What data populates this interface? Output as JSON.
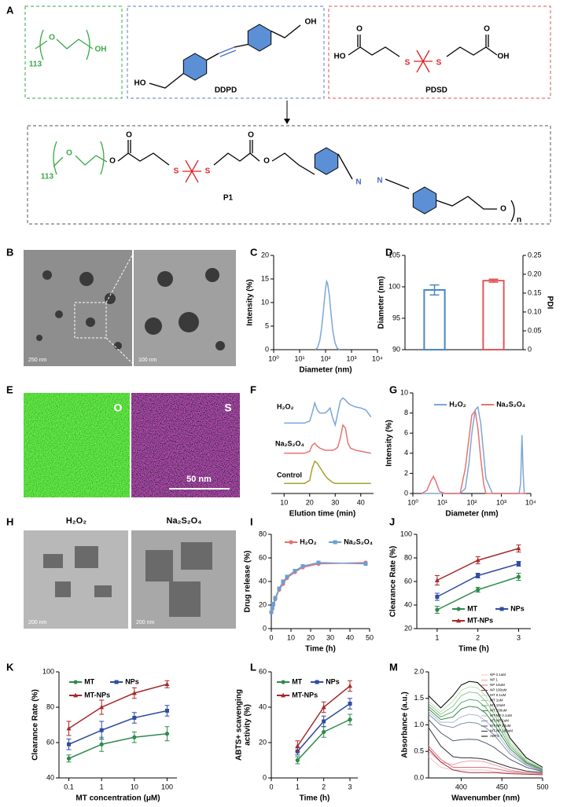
{
  "panels": [
    "A",
    "B",
    "C",
    "D",
    "E",
    "F",
    "G",
    "H",
    "I",
    "J",
    "K",
    "L",
    "M"
  ],
  "scheme_labels": [
    "113",
    "O",
    "OH",
    "OH",
    "HO",
    "DDPD",
    "O",
    "HO",
    "S",
    "S",
    "O",
    "OH",
    "PDSD",
    "113",
    "O",
    "O",
    "O",
    "S",
    "S",
    "O",
    "O",
    "N",
    "N",
    "P1",
    "O",
    "n"
  ],
  "images": {
    "B": [
      "250 nm",
      "100 nm"
    ],
    "E": [
      "O",
      "S",
      "50 nm"
    ],
    "H": [
      "H₂O₂",
      "Na₂S₂O₄",
      "200 nm",
      "200 nm"
    ]
  },
  "chart_data": [
    {
      "type": "line",
      "xlabel": "Diameter (nm)",
      "ylabel": "Intensity (%)",
      "xlog": true,
      "xlim": [
        1,
        10000
      ],
      "xticks": [
        {
          "value": 1,
          "label": "10⁰"
        },
        {
          "value": 10,
          "label": "10¹"
        },
        {
          "value": 100,
          "label": "10²"
        },
        {
          "value": 1000,
          "label": "10³"
        },
        {
          "value": 10000,
          "label": "10⁴"
        }
      ],
      "ylim": [
        0,
        20
      ],
      "yticks": [
        0,
        5,
        10,
        15,
        20
      ],
      "x": [
        40,
        50,
        60,
        70,
        80,
        90,
        100,
        110,
        120,
        140,
        160,
        190,
        230,
        280,
        350
      ],
      "series": [
        {
          "color": "#7aa7d8",
          "values": [
            0,
            0.5,
            2,
            4.5,
            7.5,
            10.5,
            13,
            14.5,
            14,
            11.5,
            8,
            4,
            1.5,
            0.3,
            0
          ]
        }
      ]
    },
    {
      "type": "bar",
      "ylabel": "Diameter (nm)",
      "y2label": "PDI",
      "categories": [
        null,
        null
      ],
      "ylim": [
        90,
        105
      ],
      "yticks": [
        90,
        95,
        100,
        105
      ],
      "y2lim": [
        0,
        0.25
      ],
      "y2ticks": [
        0,
        0.05,
        {
          "value": 0.1,
          "label": "0.10"
        },
        0.15,
        {
          "value": 0.2,
          "label": "0.20"
        },
        0.25
      ],
      "series": [
        {
          "color": "#4a86c5",
          "values": [
            99.5,
            null
          ],
          "errors": [
            0.8,
            null
          ]
        },
        {
          "color": "#e0575a",
          "values": [
            null,
            0.183
          ],
          "errors": [
            null,
            0.004
          ],
          "axis": "y2"
        }
      ]
    },
    {
      "type": "line",
      "xlabel": "Elution time (min)",
      "legend": "inline",
      "xlim": [
        5,
        45
      ],
      "xticks": [
        10,
        20,
        30,
        40
      ],
      "ylim": [
        0,
        10
      ],
      "x": [
        10,
        12,
        15,
        18,
        20,
        21,
        22,
        23,
        24,
        25,
        26,
        27,
        28,
        29,
        30,
        31,
        32,
        33,
        34,
        35,
        36,
        38,
        40,
        42,
        44
      ],
      "series": [
        {
          "name": "H₂O₂",
          "color": "#7aa7d8",
          "values": [
            7,
            7,
            7,
            7,
            7.2,
            8,
            9,
            8.3,
            8,
            8,
            8,
            8.2,
            8.5,
            7.5,
            6.8,
            8,
            9.2,
            9.5,
            9.3,
            9,
            8.8,
            8.6,
            8.5,
            8.3,
            7.6
          ]
        },
        {
          "name": "Na₂S₂O₄",
          "color": "#e57373",
          "values": [
            4,
            4,
            4,
            4,
            4.2,
            4.8,
            5,
            4.7,
            4.5,
            4.4,
            4.3,
            4.3,
            4.3,
            4.3,
            4.4,
            4.6,
            5.5,
            6.8,
            6.5,
            5,
            4.5,
            4.3,
            4.2,
            4.1,
            4
          ]
        },
        {
          "name": "Control",
          "color": "#a7a032",
          "values": [
            1,
            1,
            1,
            1,
            1.3,
            2.5,
            3.2,
            3,
            2.6,
            2.2,
            1.8,
            1.5,
            1.3,
            1.1,
            1,
            1,
            1,
            1,
            1,
            1,
            1,
            1,
            1,
            1,
            1
          ]
        }
      ]
    },
    {
      "type": "line",
      "xlabel": "Diameter (nm)",
      "ylabel": "Intensity (%)",
      "xlog": true,
      "legend": "upper left",
      "xlim": [
        1,
        10000
      ],
      "xticks": [
        {
          "value": 1,
          "label": "10⁰"
        },
        {
          "value": 10,
          "label": "10¹"
        },
        {
          "value": 100,
          "label": "10²"
        },
        {
          "value": 1000,
          "label": "10³"
        },
        {
          "value": 10000,
          "label": "10⁴"
        }
      ],
      "ylim": [
        0,
        10
      ],
      "yticks": [
        0,
        2,
        4,
        6,
        8,
        10
      ],
      "x": [
        2,
        3,
        4,
        5,
        6,
        8,
        12,
        20,
        40,
        60,
        80,
        100,
        130,
        160,
        200,
        250,
        300,
        500,
        1000,
        3000,
        4000,
        4500,
        5000,
        5500,
        6000,
        7000
      ],
      "series": [
        {
          "name": "H₂O₂",
          "color": "#7aa7d8",
          "values": [
            0,
            0,
            0,
            0,
            0,
            0,
            0,
            0,
            0,
            0.5,
            3,
            6,
            8.3,
            8.6,
            7,
            4,
            1.5,
            0,
            0,
            0,
            0,
            1,
            5.8,
            2,
            0,
            0
          ]
        },
        {
          "name": "Na₂S₂O₄",
          "color": "#e57373",
          "values": [
            0,
            0.3,
            1.2,
            1.7,
            1.2,
            0.2,
            0,
            0,
            0,
            2.5,
            5.5,
            7.8,
            8.2,
            6.5,
            3.5,
            1,
            0,
            0,
            0,
            0,
            0,
            0,
            0,
            0,
            0,
            0
          ]
        }
      ]
    },
    {
      "type": "line",
      "xlabel": "Time (h)",
      "ylabel": "Drug release (%)",
      "legend": "upper left",
      "markers": true,
      "xlim": [
        0,
        50
      ],
      "xticks": [
        0,
        10,
        20,
        30,
        40,
        50
      ],
      "ylim": [
        0,
        80
      ],
      "yticks": [
        0,
        20,
        40,
        60,
        80
      ],
      "x": [
        0,
        0.5,
        1,
        2,
        4,
        6,
        8,
        12,
        16,
        24,
        48
      ],
      "series": [
        {
          "name": "H₂O₂",
          "color": "#e8706e",
          "values": [
            14,
            17,
            20,
            25,
            33,
            38,
            43,
            48,
            52,
            55,
            56
          ]
        },
        {
          "name": "Na₂S₂O₄",
          "color": "#6a9fd4",
          "values": [
            14,
            18,
            21,
            26,
            34,
            40,
            44,
            49,
            53,
            56,
            55
          ]
        }
      ]
    },
    {
      "type": "line",
      "xlabel": "Time (h)",
      "ylabel": "Clearance Rate (%)",
      "legend": "lower right",
      "markers": true,
      "xlim": [
        0.5,
        3.3
      ],
      "xticks": [
        1,
        2,
        3
      ],
      "ylim": [
        20,
        100
      ],
      "yticks": [
        20,
        40,
        60,
        80,
        100
      ],
      "x": [
        1,
        2,
        3
      ],
      "series": [
        {
          "name": "MT",
          "color": "#2e8b4e",
          "values": [
            36,
            53,
            64
          ],
          "errors": [
            3,
            2,
            3
          ]
        },
        {
          "name": "NPs",
          "color": "#2f4da0",
          "values": [
            47,
            65,
            75
          ],
          "errors": [
            3,
            2,
            2
          ]
        },
        {
          "name": "MT-NPs",
          "color": "#a52a2a",
          "values": [
            61,
            78,
            88
          ],
          "errors": [
            4,
            3,
            3
          ]
        }
      ]
    },
    {
      "type": "line",
      "xlabel": "MT concentration (μM)",
      "ylabel": "Clearance Rate (%)",
      "xlog": true,
      "legend": "upper left",
      "markers": true,
      "xlim": [
        0.05,
        200
      ],
      "xticks": [
        0.1,
        1,
        10,
        100
      ],
      "ylim": [
        40,
        100
      ],
      "yticks": [
        40,
        60,
        80,
        100
      ],
      "x": [
        0.1,
        1,
        10,
        100
      ],
      "series": [
        {
          "name": "MT",
          "color": "#2e8b4e",
          "values": [
            51,
            59,
            63,
            65
          ],
          "errors": [
            2,
            4,
            3,
            4
          ]
        },
        {
          "name": "NPs",
          "color": "#2f4da0",
          "values": [
            59,
            67,
            74,
            78
          ],
          "errors": [
            3,
            5,
            3,
            3
          ]
        },
        {
          "name": "MT-NPs",
          "color": "#a52a2a",
          "values": [
            68,
            80,
            88,
            93
          ],
          "errors": [
            4,
            4,
            3,
            2
          ]
        }
      ]
    },
    {
      "type": "line",
      "xlabel": "Time (h)",
      "ylabel": [
        "ABTS+ scavenging",
        "activity (%)"
      ],
      "legend": "upper left",
      "markers": true,
      "xlim": [
        0,
        3.3
      ],
      "xticks": [
        0,
        1,
        2,
        3
      ],
      "ylim": [
        0,
        60
      ],
      "yticks": [
        0,
        20,
        40,
        60
      ],
      "x": [
        1,
        2,
        3
      ],
      "series": [
        {
          "name": "MT",
          "color": "#2e8b4e",
          "values": [
            10,
            26,
            33
          ],
          "errors": [
            2,
            3,
            3
          ]
        },
        {
          "name": "NPs",
          "color": "#2f4da0",
          "values": [
            15,
            32,
            42
          ],
          "errors": [
            2,
            3,
            3
          ]
        },
        {
          "name": "MT-NPs",
          "color": "#a52a2a",
          "values": [
            18,
            40,
            52
          ],
          "errors": [
            3,
            3,
            3
          ]
        }
      ]
    },
    {
      "type": "line",
      "xlabel": "Wavenumber (nm)",
      "ylabel": "Absorbance (a.u.)",
      "legend": "upper right",
      "xlim": [
        360,
        500
      ],
      "xticks": [
        400,
        450,
        500
      ],
      "ylim": [
        0,
        2
      ],
      "yticks": [
        {
          "value": 0,
          "label": "0.0"
        },
        0.5,
        {
          "value": 1,
          "label": "1.0"
        },
        1.5,
        {
          "value": 2,
          "label": "2.0"
        }
      ],
      "x": [
        360,
        375,
        390,
        400,
        410,
        420,
        430,
        440,
        460,
        480,
        500
      ],
      "series": [
        {
          "name": "NP 0.1uM",
          "color": "#f4c2c2",
          "values": [
            0.4,
            0.2,
            0.15,
            0.15,
            0.15,
            0.15,
            0.15,
            0.12,
            0.1,
            0.08,
            0.07
          ]
        },
        {
          "name": "NP 1",
          "color": "#f0a0a8",
          "values": [
            0.5,
            0.3,
            0.25,
            0.3,
            0.32,
            0.32,
            0.3,
            0.25,
            0.15,
            0.1,
            0.08
          ]
        },
        {
          "name": "NP 10uM",
          "color": "#d97080",
          "values": [
            0.6,
            0.35,
            0.2,
            0.2,
            0.2,
            0.2,
            0.2,
            0.18,
            0.12,
            0.1,
            0.08
          ]
        },
        {
          "name": "NP 100uM",
          "color": "#a03040",
          "values": [
            0.55,
            0.3,
            0.15,
            0.12,
            0.1,
            0.1,
            0.1,
            0.1,
            0.08,
            0.07,
            0.06
          ]
        },
        {
          "name": "MT 0.1uM",
          "color": "#bfe0b0",
          "values": [
            1.45,
            1.25,
            1.45,
            1.65,
            1.72,
            1.7,
            1.55,
            1.3,
            0.7,
            0.35,
            0.18
          ]
        },
        {
          "name": "MT 1uM",
          "color": "#90c890",
          "values": [
            1.4,
            1.2,
            1.35,
            1.55,
            1.62,
            1.6,
            1.45,
            1.22,
            0.65,
            0.32,
            0.17
          ]
        },
        {
          "name": "MT 10uM",
          "color": "#60a870",
          "values": [
            1.35,
            1.15,
            1.25,
            1.42,
            1.48,
            1.46,
            1.33,
            1.12,
            0.6,
            0.3,
            0.16
          ]
        },
        {
          "name": "MT 100uM",
          "color": "#3a8a50",
          "values": [
            1.3,
            1.1,
            1.15,
            1.3,
            1.35,
            1.33,
            1.22,
            1.02,
            0.55,
            0.28,
            0.15
          ]
        },
        {
          "name": "MT-NP 0.1uM",
          "color": "#b0b8c8",
          "values": [
            1.25,
            1.05,
            1.05,
            1.15,
            1.2,
            1.18,
            1.08,
            0.92,
            0.5,
            0.26,
            0.14
          ]
        },
        {
          "name": "MT-NP 1uM",
          "color": "#8090b0",
          "values": [
            1.2,
            1.0,
            0.95,
            1.02,
            1.05,
            1.03,
            0.95,
            0.82,
            0.45,
            0.24,
            0.13
          ]
        },
        {
          "name": "MT-NP 10uM",
          "color": "#505a78",
          "values": [
            1.1,
            0.85,
            0.7,
            0.72,
            0.73,
            0.72,
            0.66,
            0.58,
            0.35,
            0.2,
            0.12
          ]
        },
        {
          "name": "MT-NP 100uM",
          "color": "#30303a",
          "values": [
            0.95,
            0.6,
            0.4,
            0.38,
            0.38,
            0.37,
            0.35,
            0.3,
            0.2,
            0.13,
            0.1
          ]
        },
        {
          "name": "ABTS +",
          "color": "#000000",
          "values": [
            1.55,
            1.32,
            1.55,
            1.75,
            1.82,
            1.8,
            1.65,
            1.4,
            0.75,
            0.38,
            0.2
          ]
        }
      ]
    }
  ]
}
